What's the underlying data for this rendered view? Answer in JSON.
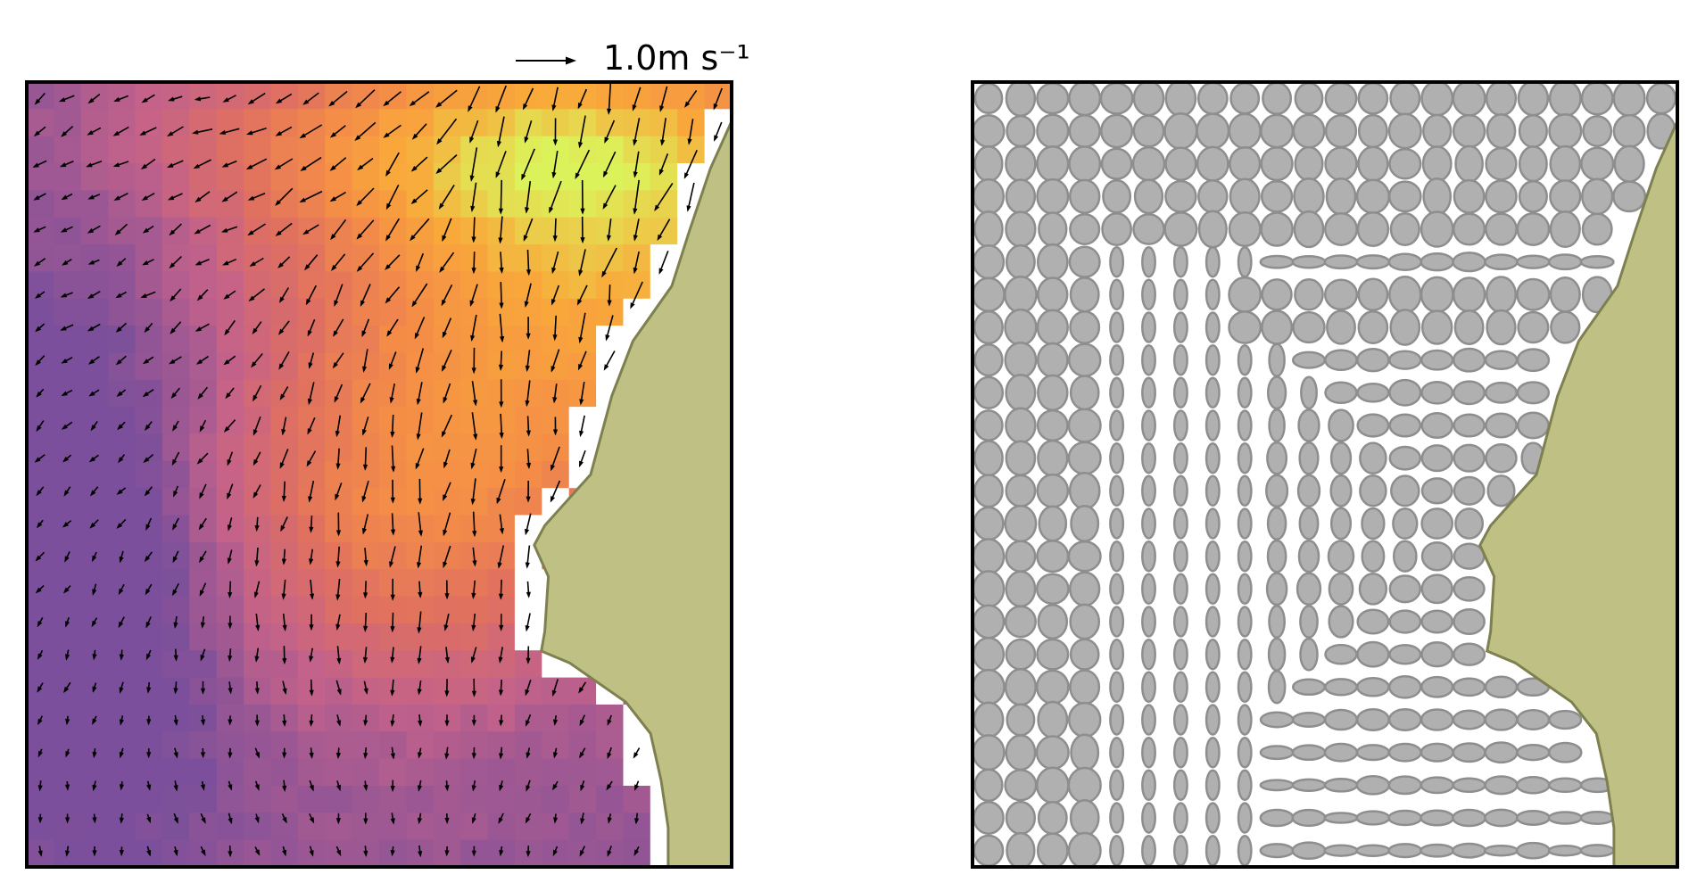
{
  "chart_data": [
    {
      "panel": "left",
      "type": "heatmap",
      "title": "",
      "xlabel": "",
      "ylabel": "",
      "description_note": "",
      "colormap": [
        "#7b4f9b",
        "#c3628a",
        "#e07060",
        "#f48c48",
        "#f9a93a",
        "#dcf25a"
      ],
      "grid": {
        "cols": 26,
        "rows": 29
      },
      "quiver": {
        "cols": 26,
        "rows": 24,
        "arrow_color": "#000000"
      },
      "quiver_key": {
        "label": "1.0m s⁻¹",
        "value": 1.0
      },
      "land_color": "#bfc184",
      "land_edge_color": "#7e8050",
      "coastline": [
        [
          1.0,
          0.05
        ],
        [
          0.97,
          0.11
        ],
        [
          0.94,
          0.19
        ],
        [
          0.915,
          0.26
        ],
        [
          0.86,
          0.33
        ],
        [
          0.83,
          0.4
        ],
        [
          0.8,
          0.5
        ],
        [
          0.735,
          0.565
        ],
        [
          0.72,
          0.59
        ],
        [
          0.74,
          0.63
        ],
        [
          0.735,
          0.7
        ],
        [
          0.73,
          0.725
        ],
        [
          0.77,
          0.74
        ],
        [
          0.85,
          0.79
        ],
        [
          0.885,
          0.83
        ],
        [
          0.9,
          0.89
        ],
        [
          0.91,
          0.95
        ],
        [
          0.91,
          1.0
        ]
      ]
    },
    {
      "panel": "right",
      "type": "scatter",
      "title": "",
      "xlabel": "",
      "ylabel": "",
      "marker": "ellipse",
      "grid": {
        "cols": 22,
        "rows": 24
      },
      "ellipse_fill": "#b0b0b0",
      "ellipse_edge": "#8e8e8e",
      "land_color": "#bfc184",
      "land_edge_color": "#7e8050",
      "coastline": [
        [
          1.0,
          0.05
        ],
        [
          0.97,
          0.11
        ],
        [
          0.94,
          0.19
        ],
        [
          0.915,
          0.26
        ],
        [
          0.86,
          0.33
        ],
        [
          0.83,
          0.4
        ],
        [
          0.8,
          0.5
        ],
        [
          0.735,
          0.565
        ],
        [
          0.72,
          0.59
        ],
        [
          0.74,
          0.63
        ],
        [
          0.735,
          0.7
        ],
        [
          0.73,
          0.725
        ],
        [
          0.77,
          0.74
        ],
        [
          0.85,
          0.79
        ],
        [
          0.885,
          0.83
        ],
        [
          0.9,
          0.89
        ],
        [
          0.91,
          0.95
        ],
        [
          0.91,
          1.0
        ]
      ]
    }
  ]
}
